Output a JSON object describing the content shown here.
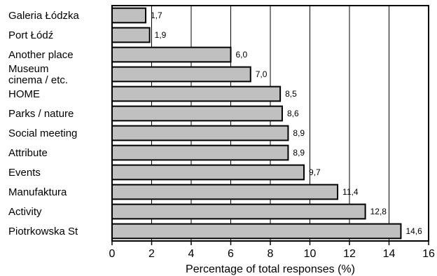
{
  "chart_data": {
    "type": "bar",
    "orientation": "horizontal",
    "categories": [
      "Galeria Łódzka",
      "Port Łódź",
      "Another place",
      "Museum cinema / etc.",
      "HOME",
      "Parks / nature",
      "Social meeting",
      "Attribute",
      "Events",
      "Manufaktura",
      "Activity",
      "Piotrkowska St"
    ],
    "category_lines": [
      [
        "Galeria Łódzka"
      ],
      [
        "Port Łódź"
      ],
      [
        "Another place"
      ],
      [
        "Museum",
        "cinema / etc."
      ],
      [
        "HOME"
      ],
      [
        "Parks / nature"
      ],
      [
        "Social meeting"
      ],
      [
        "Attribute"
      ],
      [
        "Events"
      ],
      [
        "Manufaktura"
      ],
      [
        "Activity"
      ],
      [
        "Piotrkowska St"
      ]
    ],
    "values": [
      1.7,
      1.9,
      6.0,
      7.0,
      8.5,
      8.6,
      8.9,
      8.9,
      9.7,
      11.4,
      12.8,
      14.6
    ],
    "value_labels": [
      "1,7",
      "1,9",
      "6,0",
      "7,0",
      "8,5",
      "8,6",
      "8,9",
      "8,9",
      "9,7",
      "11,4",
      "12,8",
      "14,6"
    ],
    "xlabel": "Percentage of total responses (%)",
    "ylabel": "",
    "xlim": [
      0,
      16
    ],
    "xticks": [
      "0",
      "2",
      "4",
      "6",
      "8",
      "10",
      "12",
      "14",
      "16"
    ],
    "grid": "vertical",
    "bar_color": "#c0c0c0",
    "edge_color": "#000000"
  }
}
